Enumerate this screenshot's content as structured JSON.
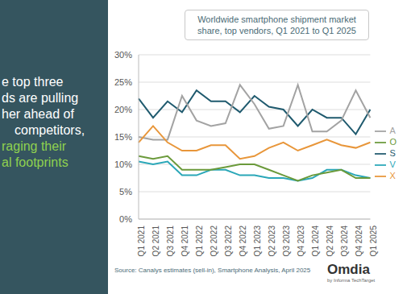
{
  "chart_data": {
    "type": "line",
    "title": "Worldwide smartphone shipment market share, top vendors, Q1 2021 to Q1 2025",
    "headline": [
      "e top three",
      "ds are pulling",
      "her ahead of",
      "competitors,",
      "raging their",
      "al footprints"
    ],
    "source": "Source: Canalys estimates (sell-in), Smartphone Analysis, April 2025",
    "logo": "Omdia",
    "logo_subtitle": "by Informa TechTarget",
    "categories": [
      "Q1 2021",
      "Q2 2021",
      "Q3 2021",
      "Q4 2021",
      "Q1 2022",
      "Q2 2022",
      "Q3 2022",
      "Q4 2022",
      "Q1 2023",
      "Q2 2023",
      "Q3 2023",
      "Q4 2023",
      "Q1 2024",
      "Q2 2024",
      "Q3 2024",
      "Q4 2024",
      "Q1 2025"
    ],
    "series": [
      {
        "name": "S",
        "color": "#1f5a6e",
        "values": [
          22,
          18.5,
          21.5,
          19.5,
          23.5,
          21.5,
          21.5,
          19.5,
          22.5,
          20.5,
          20,
          17,
          20,
          18.5,
          18.5,
          15.5,
          20
        ]
      },
      {
        "name": "A",
        "color": "#a3a3a3",
        "values": [
          15,
          14.5,
          14.5,
          22.5,
          18,
          17,
          17.5,
          24.5,
          21,
          16.5,
          17,
          24.5,
          16,
          16,
          18,
          23.5,
          18.5
        ]
      },
      {
        "name": "X",
        "color": "#e8963a",
        "values": [
          14,
          17,
          14,
          12.5,
          12.5,
          13.5,
          13.5,
          11,
          11.5,
          13,
          14,
          12.5,
          13.5,
          14.5,
          13.5,
          13,
          14
        ]
      },
      {
        "name": "V",
        "color": "#2aa7b8",
        "values": [
          10.5,
          10,
          10.5,
          8,
          8,
          9,
          9,
          8,
          8,
          7.5,
          7.5,
          7,
          7.5,
          9,
          9,
          8,
          7.5
        ]
      },
      {
        "name": "O",
        "color": "#6b9a3b",
        "values": [
          11.5,
          11,
          11.5,
          9,
          9,
          9,
          9.5,
          10,
          10,
          9,
          8,
          7,
          8,
          8.5,
          9,
          7.5,
          7.5
        ]
      }
    ],
    "ylim": [
      0,
      30
    ],
    "yticks": [
      {
        "value": 0,
        "label": "0%"
      },
      {
        "value": 5,
        "label": "5%"
      },
      {
        "value": 10,
        "label": "10%"
      },
      {
        "value": 15,
        "label": "15%"
      },
      {
        "value": 20,
        "label": "20%"
      },
      {
        "value": 25,
        "label": "25%"
      },
      {
        "value": 30,
        "label": "30%"
      }
    ],
    "grid": true,
    "legend": "right"
  }
}
